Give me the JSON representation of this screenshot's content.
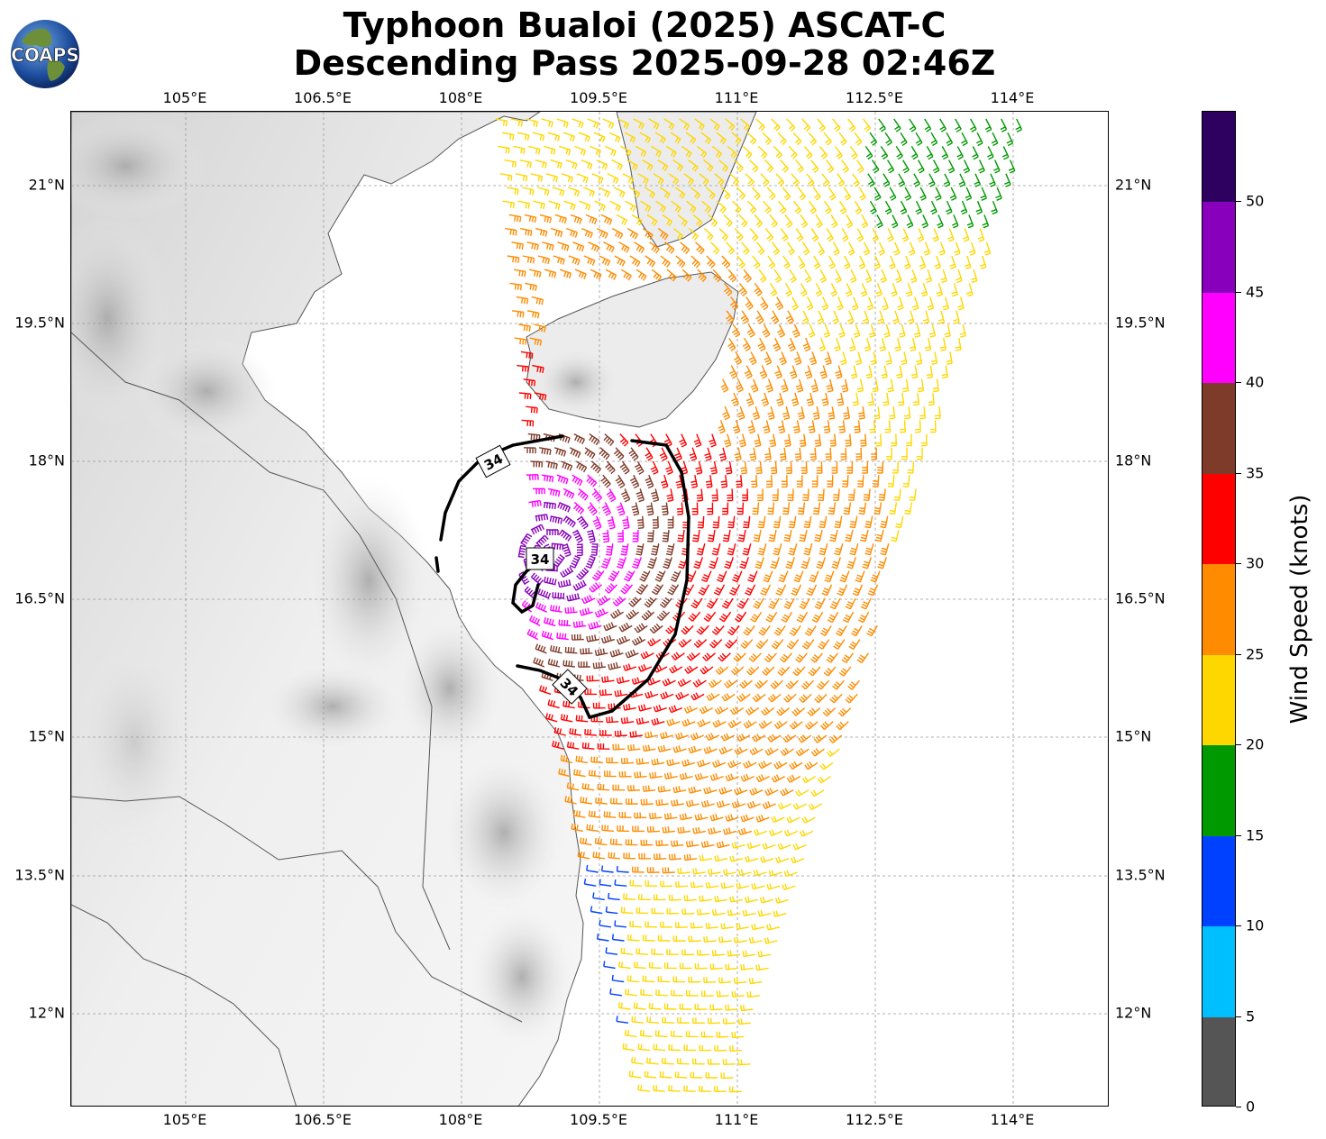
{
  "title_line1": "Typhoon Bualoi (2025) ASCAT-C",
  "title_line2": "Descending Pass 2025-09-28 02:46Z",
  "logo_text": "COAPS",
  "lon_ticks": [
    "105°E",
    "106.5°E",
    "108°E",
    "109.5°E",
    "111°E",
    "112.5°E",
    "114°E"
  ],
  "lat_ticks": [
    "21°N",
    "19.5°N",
    "18°N",
    "16.5°N",
    "15°N",
    "13.5°N",
    "12°N"
  ],
  "colorbar": {
    "label": "Wind Speed (knots)",
    "ticks": [
      "0",
      "5",
      "10",
      "15",
      "20",
      "25",
      "30",
      "35",
      "40",
      "45",
      "50"
    ],
    "bins": [
      {
        "min": 0,
        "max": 5,
        "color": "#555555"
      },
      {
        "min": 5,
        "max": 10,
        "color": "#00bfff"
      },
      {
        "min": 10,
        "max": 15,
        "color": "#0040ff"
      },
      {
        "min": 15,
        "max": 20,
        "color": "#009900"
      },
      {
        "min": 20,
        "max": 25,
        "color": "#ffd700"
      },
      {
        "min": 25,
        "max": 30,
        "color": "#ff8c00"
      },
      {
        "min": 30,
        "max": 35,
        "color": "#ff0000"
      },
      {
        "min": 35,
        "max": 40,
        "color": "#7f3b2a"
      },
      {
        "min": 40,
        "max": 45,
        "color": "#ff00ff"
      },
      {
        "min": 45,
        "max": 50,
        "color": "#8800bb"
      },
      {
        "min": 50,
        "max": 55,
        "color": "#2e0060"
      }
    ]
  },
  "contour_labels": [
    "34",
    "34",
    "34"
  ],
  "map": {
    "lon_range": [
      103.75,
      115.0
    ],
    "lat_range": [
      11.2,
      22.0
    ],
    "gridlines": true
  }
}
